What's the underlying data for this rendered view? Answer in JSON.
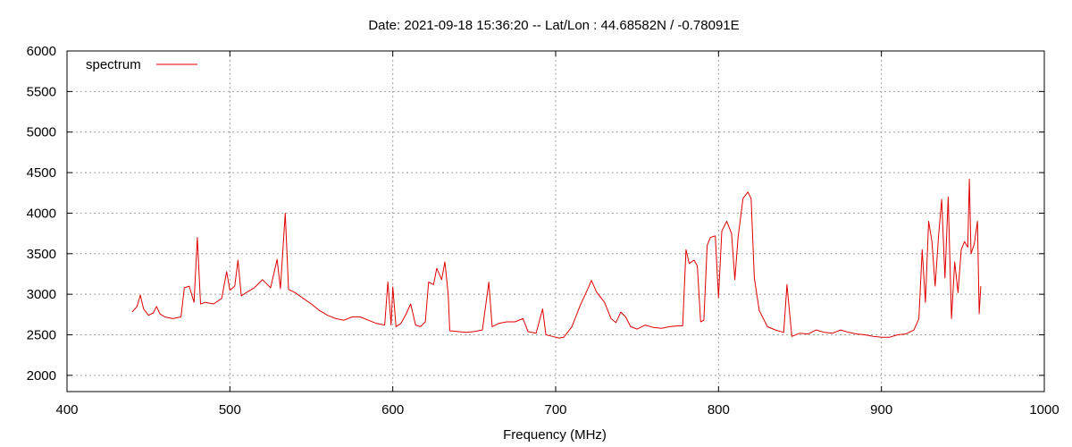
{
  "chart_data": {
    "type": "line",
    "title": "Date: 2021-09-18 15:36:20  --  Lat/Lon : 44.68582N / -0.78091E",
    "xlabel": "Frequency (MHz)",
    "ylabel": "",
    "xlim": [
      400,
      1000
    ],
    "ylim": [
      1800,
      6000
    ],
    "x_ticks": [
      400,
      500,
      600,
      700,
      800,
      900,
      1000
    ],
    "y_ticks": [
      2000,
      2500,
      3000,
      3500,
      4000,
      4500,
      5000,
      5500,
      6000
    ],
    "grid": true,
    "legend_position": "top-left",
    "line_color": "#e00000",
    "series": [
      {
        "name": "spectrum",
        "color": "#e00000",
        "points": [
          [
            440,
            2780
          ],
          [
            443,
            2850
          ],
          [
            445,
            2990
          ],
          [
            447,
            2820
          ],
          [
            450,
            2740
          ],
          [
            453,
            2770
          ],
          [
            455,
            2850
          ],
          [
            457,
            2760
          ],
          [
            460,
            2720
          ],
          [
            465,
            2700
          ],
          [
            470,
            2720
          ],
          [
            472,
            3080
          ],
          [
            475,
            3100
          ],
          [
            478,
            2900
          ],
          [
            480,
            3700
          ],
          [
            482,
            2880
          ],
          [
            485,
            2900
          ],
          [
            490,
            2880
          ],
          [
            495,
            2950
          ],
          [
            498,
            3280
          ],
          [
            500,
            3050
          ],
          [
            503,
            3100
          ],
          [
            505,
            3420
          ],
          [
            507,
            2980
          ],
          [
            510,
            3020
          ],
          [
            515,
            3080
          ],
          [
            520,
            3180
          ],
          [
            525,
            3080
          ],
          [
            529,
            3430
          ],
          [
            531,
            3070
          ],
          [
            534,
            4000
          ],
          [
            536,
            3060
          ],
          [
            540,
            3020
          ],
          [
            545,
            2950
          ],
          [
            550,
            2880
          ],
          [
            555,
            2800
          ],
          [
            560,
            2740
          ],
          [
            565,
            2700
          ],
          [
            570,
            2680
          ],
          [
            575,
            2720
          ],
          [
            580,
            2720
          ],
          [
            585,
            2680
          ],
          [
            590,
            2640
          ],
          [
            595,
            2620
          ],
          [
            597,
            3150
          ],
          [
            599,
            2620
          ],
          [
            600,
            3090
          ],
          [
            602,
            2600
          ],
          [
            605,
            2640
          ],
          [
            608,
            2750
          ],
          [
            611,
            2880
          ],
          [
            614,
            2620
          ],
          [
            617,
            2600
          ],
          [
            620,
            2660
          ],
          [
            622,
            3150
          ],
          [
            625,
            3120
          ],
          [
            627,
            3320
          ],
          [
            630,
            3180
          ],
          [
            632,
            3400
          ],
          [
            634,
            3000
          ],
          [
            635,
            2550
          ],
          [
            640,
            2540
          ],
          [
            645,
            2530
          ],
          [
            650,
            2540
          ],
          [
            655,
            2560
          ],
          [
            659,
            3150
          ],
          [
            661,
            2600
          ],
          [
            665,
            2640
          ],
          [
            670,
            2660
          ],
          [
            675,
            2660
          ],
          [
            680,
            2700
          ],
          [
            683,
            2540
          ],
          [
            688,
            2520
          ],
          [
            692,
            2820
          ],
          [
            694,
            2500
          ],
          [
            698,
            2480
          ],
          [
            702,
            2460
          ],
          [
            705,
            2470
          ],
          [
            710,
            2600
          ],
          [
            715,
            2860
          ],
          [
            720,
            3080
          ],
          [
            722,
            3170
          ],
          [
            725,
            3030
          ],
          [
            730,
            2900
          ],
          [
            734,
            2700
          ],
          [
            737,
            2650
          ],
          [
            740,
            2780
          ],
          [
            743,
            2720
          ],
          [
            746,
            2600
          ],
          [
            750,
            2570
          ],
          [
            755,
            2620
          ],
          [
            760,
            2590
          ],
          [
            765,
            2580
          ],
          [
            770,
            2600
          ],
          [
            775,
            2610
          ],
          [
            778,
            2610
          ],
          [
            780,
            3550
          ],
          [
            782,
            3380
          ],
          [
            785,
            3420
          ],
          [
            787,
            3350
          ],
          [
            789,
            2660
          ],
          [
            791,
            2680
          ],
          [
            793,
            3600
          ],
          [
            795,
            3700
          ],
          [
            798,
            3720
          ],
          [
            800,
            2960
          ],
          [
            802,
            3780
          ],
          [
            805,
            3900
          ],
          [
            808,
            3750
          ],
          [
            810,
            3180
          ],
          [
            812,
            3700
          ],
          [
            815,
            4180
          ],
          [
            818,
            4260
          ],
          [
            820,
            4180
          ],
          [
            822,
            3200
          ],
          [
            825,
            2800
          ],
          [
            830,
            2600
          ],
          [
            835,
            2560
          ],
          [
            840,
            2530
          ],
          [
            842,
            3120
          ],
          [
            845,
            2480
          ],
          [
            850,
            2520
          ],
          [
            855,
            2510
          ],
          [
            860,
            2560
          ],
          [
            865,
            2530
          ],
          [
            870,
            2520
          ],
          [
            875,
            2560
          ],
          [
            880,
            2530
          ],
          [
            885,
            2510
          ],
          [
            890,
            2500
          ],
          [
            895,
            2480
          ],
          [
            900,
            2470
          ],
          [
            905,
            2470
          ],
          [
            910,
            2500
          ],
          [
            915,
            2510
          ],
          [
            920,
            2560
          ],
          [
            923,
            2700
          ],
          [
            925,
            3550
          ],
          [
            927,
            2900
          ],
          [
            929,
            3900
          ],
          [
            931,
            3650
          ],
          [
            933,
            3100
          ],
          [
            935,
            3700
          ],
          [
            937,
            4170
          ],
          [
            939,
            3200
          ],
          [
            941,
            4200
          ],
          [
            943,
            2700
          ],
          [
            945,
            3400
          ],
          [
            947,
            3020
          ],
          [
            949,
            3550
          ],
          [
            951,
            3650
          ],
          [
            953,
            3580
          ],
          [
            954,
            4420
          ],
          [
            955,
            3500
          ],
          [
            957,
            3620
          ],
          [
            959,
            3900
          ],
          [
            960,
            2760
          ],
          [
            961,
            3100
          ]
        ]
      }
    ]
  }
}
